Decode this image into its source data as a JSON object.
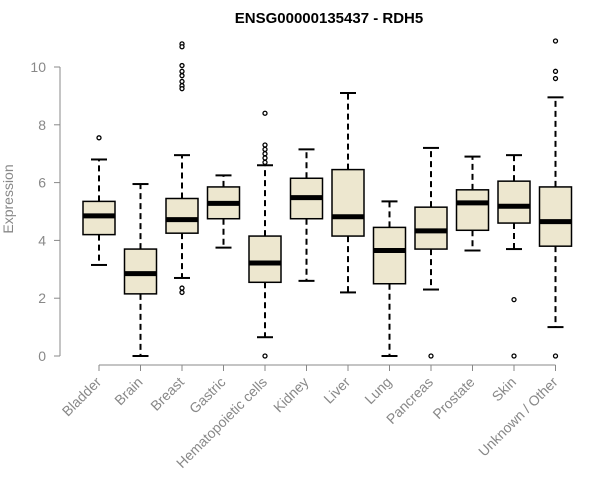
{
  "chart_data": {
    "type": "box",
    "title": "ENSG00000135437 - RDH5",
    "ylabel": "Expression",
    "xlabel": "",
    "ylim": [
      0,
      11
    ],
    "yticks": [
      0,
      2,
      4,
      6,
      8,
      10
    ],
    "grid": false,
    "box_fill": "#ede7cf",
    "categories": [
      "Bladder",
      "Brain",
      "Breast",
      "Gastric",
      "Hematopoietic cells",
      "Kidney",
      "Liver",
      "Lung",
      "Pancreas",
      "Prostate",
      "Skin",
      "Unknown / Other"
    ],
    "boxes": [
      {
        "category": "Bladder",
        "whisker_low": 3.15,
        "q1": 4.2,
        "median": 4.85,
        "q3": 5.35,
        "whisker_high": 6.8,
        "outliers": [
          7.55
        ]
      },
      {
        "category": "Brain",
        "whisker_low": 0.0,
        "q1": 2.15,
        "median": 2.85,
        "q3": 3.7,
        "whisker_high": 5.95,
        "outliers": []
      },
      {
        "category": "Breast",
        "whisker_low": 2.7,
        "q1": 4.25,
        "median": 4.72,
        "q3": 5.45,
        "whisker_high": 6.95,
        "outliers": [
          10.8,
          10.7,
          10.05,
          9.85,
          9.7,
          9.5,
          9.35,
          9.25,
          2.35,
          2.2
        ]
      },
      {
        "category": "Gastric",
        "whisker_low": 3.75,
        "q1": 4.75,
        "median": 5.28,
        "q3": 5.85,
        "whisker_high": 6.25,
        "outliers": []
      },
      {
        "category": "Hematopoietic cells",
        "whisker_low": 0.65,
        "q1": 2.55,
        "median": 3.22,
        "q3": 4.15,
        "whisker_high": 6.6,
        "outliers": [
          8.4,
          7.3,
          7.15,
          7.0,
          6.85,
          6.7,
          0.0
        ]
      },
      {
        "category": "Kidney",
        "whisker_low": 2.6,
        "q1": 4.75,
        "median": 5.48,
        "q3": 6.15,
        "whisker_high": 7.15,
        "outliers": []
      },
      {
        "category": "Liver",
        "whisker_low": 2.2,
        "q1": 4.15,
        "median": 4.82,
        "q3": 6.45,
        "whisker_high": 9.1,
        "outliers": []
      },
      {
        "category": "Lung",
        "whisker_low": 0.0,
        "q1": 2.5,
        "median": 3.65,
        "q3": 4.45,
        "whisker_high": 5.35,
        "outliers": []
      },
      {
        "category": "Pancreas",
        "whisker_low": 2.3,
        "q1": 3.7,
        "median": 4.33,
        "q3": 5.15,
        "whisker_high": 7.2,
        "outliers": [
          0.0
        ]
      },
      {
        "category": "Prostate",
        "whisker_low": 3.65,
        "q1": 4.35,
        "median": 5.3,
        "q3": 5.75,
        "whisker_high": 6.9,
        "outliers": []
      },
      {
        "category": "Skin",
        "whisker_low": 3.7,
        "q1": 4.6,
        "median": 5.18,
        "q3": 6.05,
        "whisker_high": 6.95,
        "outliers": [
          1.95,
          0.0
        ]
      },
      {
        "category": "Unknown / Other",
        "whisker_low": 1.0,
        "q1": 3.8,
        "median": 4.65,
        "q3": 5.85,
        "whisker_high": 8.95,
        "outliers": [
          10.9,
          9.85,
          9.6,
          0.0
        ]
      }
    ]
  }
}
